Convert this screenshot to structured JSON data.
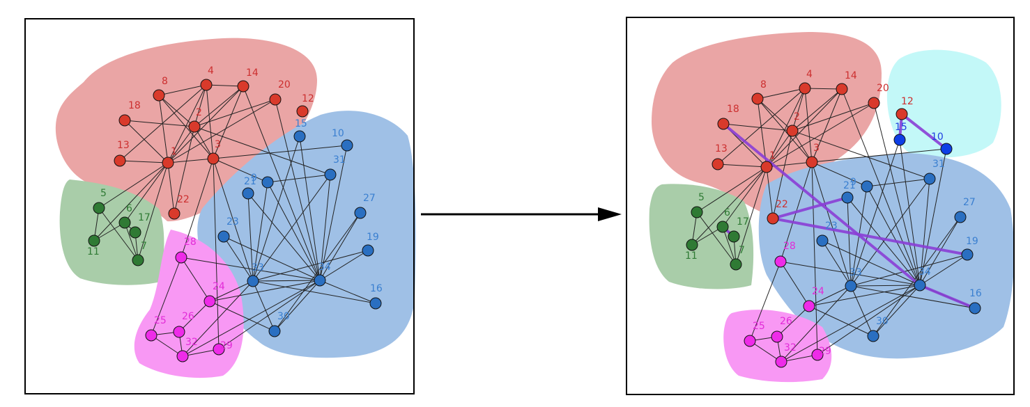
{
  "nodes": {
    "1": {
      "label": "1",
      "group": "red"
    },
    "2": {
      "label": "2",
      "group": "red"
    },
    "3": {
      "label": "3",
      "group": "red"
    },
    "4": {
      "label": "4",
      "group": "red"
    },
    "5": {
      "label": "5",
      "group": "green"
    },
    "6": {
      "label": "6",
      "group": "green"
    },
    "7": {
      "label": "7",
      "group": "green"
    },
    "8": {
      "label": "8",
      "group": "red"
    },
    "9": {
      "label": "9",
      "group": "blue"
    },
    "10": {
      "label": "10",
      "group": "blue"
    },
    "11": {
      "label": "11",
      "group": "green"
    },
    "12": {
      "label": "12",
      "group": "red"
    },
    "13": {
      "label": "13",
      "group": "red"
    },
    "14": {
      "label": "14",
      "group": "red"
    },
    "15": {
      "label": "15",
      "group": "blue"
    },
    "16": {
      "label": "16",
      "group": "blue"
    },
    "17": {
      "label": "17",
      "group": "green"
    },
    "18": {
      "label": "18",
      "group": "red"
    },
    "19": {
      "label": "19",
      "group": "blue"
    },
    "20": {
      "label": "20",
      "group": "red"
    },
    "21": {
      "label": "21",
      "group": "blue"
    },
    "22": {
      "label": "22",
      "group": "red"
    },
    "23": {
      "label": "23",
      "group": "blue"
    },
    "24": {
      "label": "24",
      "group": "magenta"
    },
    "25": {
      "label": "25",
      "group": "magenta"
    },
    "26": {
      "label": "26",
      "group": "magenta"
    },
    "27": {
      "label": "27",
      "group": "blue"
    },
    "28": {
      "label": "28",
      "group": "magenta"
    },
    "29": {
      "label": "29",
      "group": "magenta"
    },
    "30": {
      "label": "30",
      "group": "blue"
    },
    "31": {
      "label": "31",
      "group": "blue"
    },
    "32": {
      "label": "32",
      "group": "magenta"
    },
    "33": {
      "label": "33",
      "group": "blue"
    },
    "34": {
      "label": "34",
      "group": "blue"
    }
  },
  "edges": [
    [
      "1",
      "2"
    ],
    [
      "1",
      "3"
    ],
    [
      "1",
      "4"
    ],
    [
      "1",
      "8"
    ],
    [
      "1",
      "13"
    ],
    [
      "1",
      "18"
    ],
    [
      "1",
      "22"
    ],
    [
      "1",
      "5"
    ],
    [
      "1",
      "6"
    ],
    [
      "1",
      "11"
    ],
    [
      "1",
      "7"
    ],
    [
      "1",
      "20"
    ],
    [
      "1",
      "14"
    ],
    [
      "2",
      "3"
    ],
    [
      "2",
      "4"
    ],
    [
      "2",
      "8"
    ],
    [
      "2",
      "14"
    ],
    [
      "2",
      "18"
    ],
    [
      "2",
      "20"
    ],
    [
      "2",
      "22"
    ],
    [
      "2",
      "31"
    ],
    [
      "3",
      "4"
    ],
    [
      "3",
      "8"
    ],
    [
      "3",
      "14"
    ],
    [
      "3",
      "9"
    ],
    [
      "3",
      "10"
    ],
    [
      "3",
      "28"
    ],
    [
      "3",
      "29"
    ],
    [
      "3",
      "33"
    ],
    [
      "4",
      "8"
    ],
    [
      "4",
      "14"
    ],
    [
      "4",
      "13"
    ],
    [
      "5",
      "7"
    ],
    [
      "5",
      "11"
    ],
    [
      "6",
      "7"
    ],
    [
      "6",
      "11"
    ],
    [
      "6",
      "17"
    ],
    [
      "7",
      "17"
    ],
    [
      "9",
      "31"
    ],
    [
      "9",
      "33"
    ],
    [
      "9",
      "34"
    ],
    [
      "10",
      "34"
    ],
    [
      "14",
      "34"
    ],
    [
      "15",
      "33"
    ],
    [
      "15",
      "34"
    ],
    [
      "16",
      "33"
    ],
    [
      "16",
      "34"
    ],
    [
      "19",
      "33"
    ],
    [
      "19",
      "34"
    ],
    [
      "20",
      "34"
    ],
    [
      "21",
      "33"
    ],
    [
      "21",
      "34"
    ],
    [
      "23",
      "33"
    ],
    [
      "23",
      "34"
    ],
    [
      "24",
      "26"
    ],
    [
      "24",
      "28"
    ],
    [
      "24",
      "30"
    ],
    [
      "24",
      "33"
    ],
    [
      "24",
      "34"
    ],
    [
      "25",
      "26"
    ],
    [
      "25",
      "28"
    ],
    [
      "25",
      "32"
    ],
    [
      "26",
      "32"
    ],
    [
      "27",
      "30"
    ],
    [
      "27",
      "34"
    ],
    [
      "28",
      "34"
    ],
    [
      "29",
      "32"
    ],
    [
      "29",
      "34"
    ],
    [
      "30",
      "33"
    ],
    [
      "30",
      "34"
    ],
    [
      "31",
      "33"
    ],
    [
      "31",
      "34"
    ],
    [
      "32",
      "33"
    ],
    [
      "32",
      "34"
    ],
    [
      "33",
      "34"
    ]
  ],
  "highlighted_edges": [
    [
      "12",
      "15"
    ],
    [
      "12",
      "10"
    ],
    [
      "18",
      "34"
    ],
    [
      "34",
      "16"
    ],
    [
      "22",
      "21"
    ],
    [
      "22",
      "19"
    ],
    [
      "6",
      "17"
    ]
  ],
  "right_panel_group_overrides": {
    "12": "red",
    "15": "strong-blue",
    "10": "strong-blue"
  },
  "colors": {
    "red_fill": "#d93a2b",
    "red_text": "#cc2f2f",
    "green_fill": "#2f7a34",
    "green_text": "#2f7a34",
    "blue_fill": "#2a6fc1",
    "blue_text": "#3a7fd0",
    "strong_blue_fill": "#0e3fe6",
    "strong_blue_text": "#1f3fe0",
    "magenta_fill": "#ee2be8",
    "magenta_text": "#e22bd7",
    "region_red": "#eaa5a5",
    "region_green": "#a9cda9",
    "region_blue": "#9fc0e6",
    "region_magenta": "#f898f4",
    "region_cyan": "#c3f8f8",
    "highlight": "#8a3fd6"
  }
}
